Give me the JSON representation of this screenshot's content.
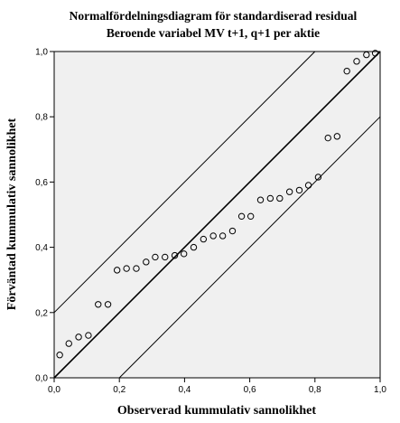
{
  "chart_data": {
    "type": "scatter",
    "title": "Normalfördelningsdiagram för standardiserad residual",
    "subtitle": "Beroende variabel MV t+1, q+1 per aktie",
    "xlabel": "Observerad kummulativ sannolikhet",
    "ylabel": "Förväntad kummulativ sannolikhet",
    "xlim": [
      0.0,
      1.0
    ],
    "ylim": [
      0.0,
      1.0
    ],
    "x_ticks": [
      "0,0",
      "0,2",
      "0,4",
      "0,6",
      "0,8",
      "1,0"
    ],
    "y_ticks": [
      "0,0",
      "0,2",
      "0,4",
      "0,6",
      "0,8",
      "1,0"
    ],
    "grid": false,
    "background_color": "#f0f0f0",
    "reference_line": {
      "from": [
        0,
        0
      ],
      "to": [
        1,
        1
      ]
    },
    "band_offset": 0.2,
    "points": [
      {
        "x": 0.017,
        "y": 0.07
      },
      {
        "x": 0.045,
        "y": 0.105
      },
      {
        "x": 0.075,
        "y": 0.125
      },
      {
        "x": 0.105,
        "y": 0.13
      },
      {
        "x": 0.135,
        "y": 0.225
      },
      {
        "x": 0.165,
        "y": 0.225
      },
      {
        "x": 0.193,
        "y": 0.33
      },
      {
        "x": 0.222,
        "y": 0.335
      },
      {
        "x": 0.252,
        "y": 0.335
      },
      {
        "x": 0.282,
        "y": 0.355
      },
      {
        "x": 0.31,
        "y": 0.37
      },
      {
        "x": 0.34,
        "y": 0.37
      },
      {
        "x": 0.37,
        "y": 0.375
      },
      {
        "x": 0.398,
        "y": 0.38
      },
      {
        "x": 0.428,
        "y": 0.4
      },
      {
        "x": 0.458,
        "y": 0.425
      },
      {
        "x": 0.488,
        "y": 0.435
      },
      {
        "x": 0.517,
        "y": 0.435
      },
      {
        "x": 0.547,
        "y": 0.45
      },
      {
        "x": 0.575,
        "y": 0.495
      },
      {
        "x": 0.603,
        "y": 0.495
      },
      {
        "x": 0.633,
        "y": 0.545
      },
      {
        "x": 0.663,
        "y": 0.55
      },
      {
        "x": 0.692,
        "y": 0.55
      },
      {
        "x": 0.722,
        "y": 0.57
      },
      {
        "x": 0.752,
        "y": 0.575
      },
      {
        "x": 0.78,
        "y": 0.59
      },
      {
        "x": 0.81,
        "y": 0.615
      },
      {
        "x": 0.84,
        "y": 0.735
      },
      {
        "x": 0.868,
        "y": 0.74
      },
      {
        "x": 0.898,
        "y": 0.94
      },
      {
        "x": 0.928,
        "y": 0.97
      },
      {
        "x": 0.958,
        "y": 0.99
      },
      {
        "x": 0.985,
        "y": 0.995
      }
    ]
  }
}
